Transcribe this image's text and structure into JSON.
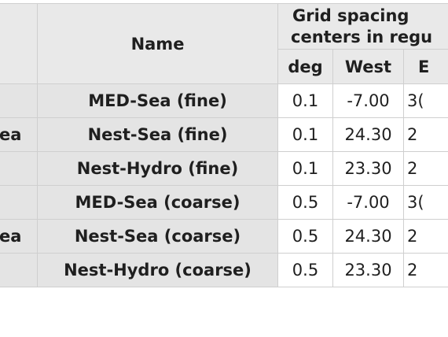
{
  "table": {
    "header": {
      "name": "Name",
      "grid_spacing": [
        "Grid spacing",
        "centers in regu"
      ],
      "deg": "deg",
      "west": "West",
      "east_partial": "E"
    },
    "rows": [
      {
        "left_fragment": "",
        "name": "MED-Sea (fine)",
        "deg": "0.1",
        "west": "-7.00",
        "east_partial": "3("
      },
      {
        "left_fragment": "ea",
        "name": "Nest-Sea (fine)",
        "deg": "0.1",
        "west": "24.30",
        "east_partial": "2"
      },
      {
        "left_fragment": "",
        "name": "Nest-Hydro (fine)",
        "deg": "0.1",
        "west": "23.30",
        "east_partial": "2"
      },
      {
        "left_fragment": "",
        "name": "MED-Sea (coarse)",
        "deg": "0.5",
        "west": "-7.00",
        "east_partial": "3("
      },
      {
        "left_fragment": "ea",
        "name": "Nest-Sea (coarse)",
        "deg": "0.5",
        "west": "24.30",
        "east_partial": "2"
      },
      {
        "left_fragment": "",
        "name": "Nest-Hydro (coarse)",
        "deg": "0.5",
        "west": "23.30",
        "east_partial": "2"
      }
    ]
  }
}
